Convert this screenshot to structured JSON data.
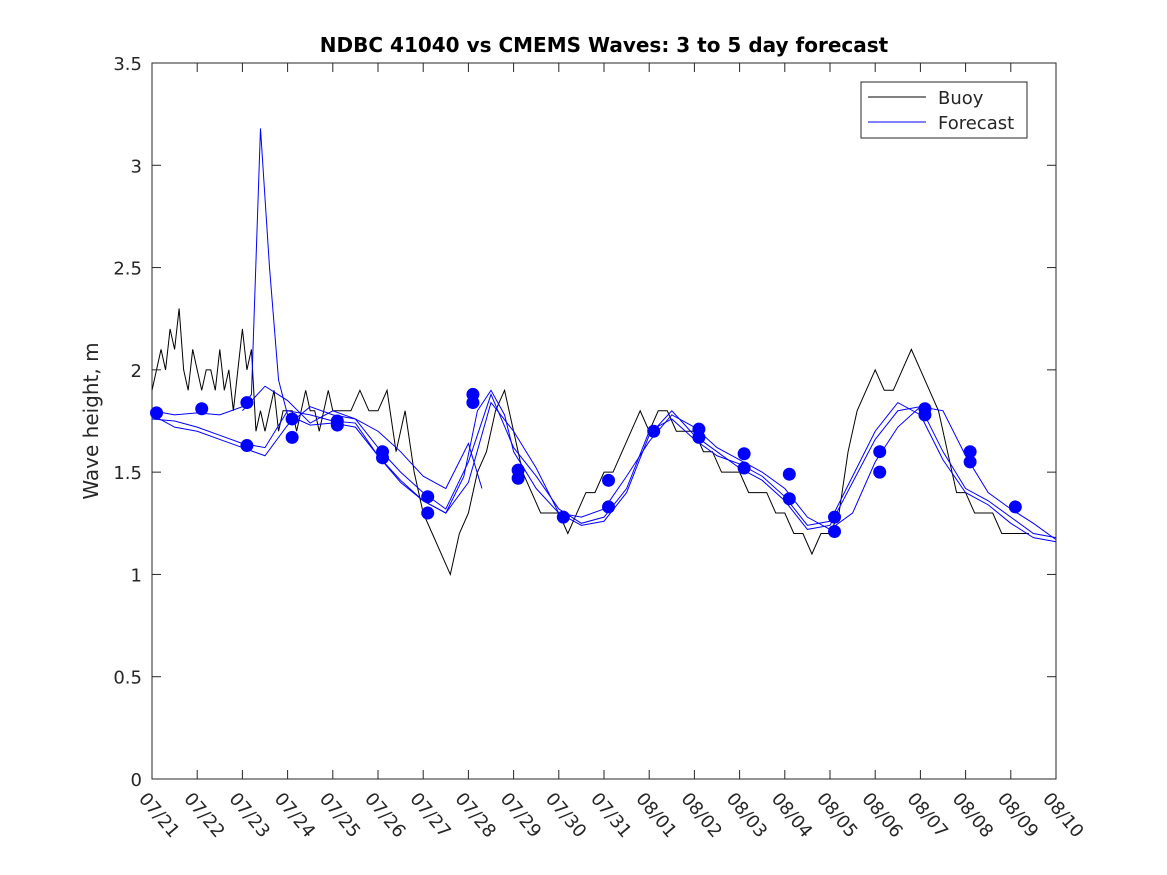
{
  "chart_data": {
    "type": "line",
    "title": "NDBC 41040 vs CMEMS Waves: 3 to 5 day forecast",
    "ylabel": "Wave height, m",
    "xlabel": "",
    "ylim": [
      0,
      3.5
    ],
    "xlim": [
      0,
      20
    ],
    "y_ticks": [
      0,
      0.5,
      1,
      1.5,
      2,
      2.5,
      3,
      3.5
    ],
    "y_tick_labels": [
      "0",
      "0.5",
      "1",
      "1.5",
      "2",
      "2.5",
      "3",
      "3.5"
    ],
    "x_tick_labels": [
      "07/21",
      "07/22",
      "07/23",
      "07/24",
      "07/25",
      "07/26",
      "07/27",
      "07/28",
      "07/29",
      "07/30",
      "07/31",
      "08/01",
      "08/02",
      "08/03",
      "08/04",
      "08/05",
      "08/06",
      "08/07",
      "08/08",
      "08/09",
      "08/10"
    ],
    "grid": false,
    "legend": {
      "placement": "top-right",
      "entries": [
        "Buoy",
        "Forecast"
      ]
    },
    "colors": {
      "buoy": "#000000",
      "forecast": "#0000ff",
      "markers": "#0000ff"
    },
    "series": [
      {
        "name": "Buoy",
        "x": [
          0.0,
          0.1,
          0.2,
          0.3,
          0.4,
          0.5,
          0.6,
          0.7,
          0.8,
          0.9,
          1.0,
          1.1,
          1.2,
          1.3,
          1.4,
          1.5,
          1.6,
          1.7,
          1.8,
          1.9,
          2.0,
          2.1,
          2.2,
          2.3,
          2.4,
          2.5,
          2.6,
          2.7,
          2.8,
          2.9,
          3.0,
          3.1,
          3.2,
          3.3,
          3.4,
          3.5,
          3.6,
          3.7,
          3.8,
          3.9,
          4.0,
          4.2,
          4.4,
          4.6,
          4.8,
          5.0,
          5.2,
          5.4,
          5.6,
          5.8,
          6.0,
          6.2,
          6.4,
          6.6,
          6.8,
          7.0,
          7.2,
          7.4,
          7.6,
          7.8,
          8.0,
          8.2,
          8.4,
          8.6,
          8.8,
          9.0,
          9.2,
          9.4,
          9.6,
          9.8,
          10.0,
          10.2,
          10.4,
          10.6,
          10.8,
          11.0,
          11.2,
          11.4,
          11.6,
          11.8,
          12.0,
          12.2,
          12.4,
          12.6,
          12.8,
          13.0,
          13.2,
          13.4,
          13.6,
          13.8,
          14.0,
          14.2,
          14.4,
          14.6,
          14.8,
          15.0,
          15.2,
          15.4,
          15.6,
          15.8,
          16.0,
          16.2,
          16.4,
          16.6,
          16.8,
          17.0,
          17.2,
          17.4,
          17.6,
          17.8,
          18.0,
          18.2,
          18.4,
          18.6,
          18.8,
          19.0,
          19.2,
          19.4
        ],
        "values": [
          1.9,
          2.0,
          2.1,
          2.0,
          2.2,
          2.1,
          2.3,
          2.0,
          1.9,
          2.1,
          2.0,
          1.9,
          2.0,
          2.0,
          1.9,
          2.1,
          1.9,
          2.0,
          1.8,
          2.0,
          2.2,
          2.0,
          2.1,
          1.7,
          1.8,
          1.7,
          1.8,
          1.9,
          1.7,
          1.8,
          1.8,
          1.8,
          1.7,
          1.8,
          1.9,
          1.8,
          1.8,
          1.7,
          1.8,
          1.9,
          1.8,
          1.8,
          1.8,
          1.9,
          1.8,
          1.8,
          1.9,
          1.6,
          1.8,
          1.5,
          1.3,
          1.2,
          1.1,
          1.0,
          1.2,
          1.3,
          1.5,
          1.6,
          1.8,
          1.9,
          1.7,
          1.5,
          1.4,
          1.3,
          1.3,
          1.3,
          1.2,
          1.3,
          1.4,
          1.4,
          1.5,
          1.5,
          1.6,
          1.7,
          1.8,
          1.7,
          1.8,
          1.8,
          1.7,
          1.7,
          1.7,
          1.6,
          1.6,
          1.5,
          1.5,
          1.5,
          1.4,
          1.4,
          1.4,
          1.3,
          1.3,
          1.2,
          1.2,
          1.1,
          1.2,
          1.2,
          1.3,
          1.6,
          1.8,
          1.9,
          2.0,
          1.9,
          1.9,
          2.0,
          2.1,
          2.0,
          1.9,
          1.8,
          1.6,
          1.4,
          1.4,
          1.3,
          1.3,
          1.3,
          1.2,
          1.2,
          1.2,
          1.2
        ]
      },
      {
        "name": "Forecast",
        "x": [
          0.0,
          0.5,
          1.0,
          1.5,
          2.0,
          2.2,
          2.4,
          2.6,
          2.8,
          3.0,
          3.5,
          4.0,
          4.5,
          5.0,
          5.5,
          6.0,
          6.5,
          6.9,
          7.2,
          7.5,
          7.8,
          8.0,
          8.5,
          9.0,
          9.5,
          10.0,
          10.5,
          11.0,
          11.5,
          12.0,
          12.5,
          13.0,
          13.5,
          14.0,
          14.5,
          15.0,
          15.5,
          16.0,
          16.5,
          17.0,
          17.5,
          18.0,
          18.5,
          19.0,
          19.5,
          20.0
        ],
        "values": [
          1.8,
          1.78,
          1.79,
          1.78,
          1.82,
          1.88,
          3.18,
          2.5,
          1.95,
          1.78,
          1.73,
          1.74,
          1.72,
          1.58,
          1.45,
          1.36,
          1.3,
          1.48,
          1.8,
          1.9,
          1.78,
          1.6,
          1.42,
          1.3,
          1.28,
          1.32,
          1.48,
          1.65,
          1.78,
          1.72,
          1.62,
          1.56,
          1.5,
          1.42,
          1.28,
          1.22,
          1.3,
          1.55,
          1.72,
          1.82,
          1.8,
          1.58,
          1.4,
          1.32,
          1.25,
          1.17
        ]
      },
      {
        "name": "",
        "x": [
          0.0,
          0.5,
          1.0,
          1.5,
          2.0,
          2.5,
          3.0,
          3.5,
          4.0,
          4.5,
          5.0,
          5.5,
          6.0,
          6.5,
          7.0,
          7.5,
          8.0,
          8.5,
          9.0,
          9.5,
          10.0,
          10.5,
          11.0,
          11.5,
          12.0,
          12.5,
          13.0,
          13.5,
          14.0,
          14.5,
          15.0,
          15.5,
          16.0,
          16.5,
          17.0,
          17.5,
          18.0,
          18.5,
          19.0,
          19.5,
          20.0
        ],
        "values": [
          1.78,
          1.72,
          1.7,
          1.66,
          1.62,
          1.58,
          1.73,
          1.82,
          1.78,
          1.76,
          1.62,
          1.5,
          1.4,
          1.32,
          1.55,
          1.88,
          1.62,
          1.48,
          1.32,
          1.25,
          1.28,
          1.42,
          1.7,
          1.76,
          1.66,
          1.58,
          1.54,
          1.48,
          1.38,
          1.24,
          1.26,
          1.48,
          1.7,
          1.84,
          1.78,
          1.56,
          1.4,
          1.34,
          1.25,
          1.18,
          1.16
        ]
      },
      {
        "name": "",
        "x": [
          0.0,
          0.5,
          1.0,
          1.5,
          2.0,
          2.5,
          3.0,
          3.5,
          4.0,
          4.5,
          5.0,
          5.5,
          6.0,
          6.5,
          7.0,
          7.5,
          8.0,
          8.5,
          9.0,
          9.5,
          10.0,
          10.5,
          11.0,
          11.5,
          12.0,
          12.5,
          13.0,
          13.5,
          14.0,
          14.5,
          15.0,
          15.5,
          16.0,
          16.5,
          17.0,
          17.5,
          18.0,
          18.5,
          19.0,
          19.5,
          20.0
        ],
        "values": [
          1.76,
          1.75,
          1.72,
          1.68,
          1.64,
          1.62,
          1.8,
          1.78,
          1.75,
          1.74,
          1.58,
          1.46,
          1.36,
          1.3,
          1.45,
          1.84,
          1.7,
          1.52,
          1.3,
          1.24,
          1.26,
          1.4,
          1.68,
          1.8,
          1.68,
          1.6,
          1.52,
          1.46,
          1.36,
          1.22,
          1.24,
          1.45,
          1.66,
          1.8,
          1.82,
          1.6,
          1.42,
          1.36,
          1.28,
          1.2,
          1.18
        ]
      },
      {
        "name": "",
        "x": [
          2.0,
          2.5,
          3.0,
          3.5,
          4.0,
          4.5,
          5.0,
          5.5,
          6.0,
          6.5,
          7.0,
          7.3
        ],
        "values": [
          1.8,
          1.92,
          1.85,
          1.74,
          1.8,
          1.76,
          1.7,
          1.6,
          1.48,
          1.42,
          1.64,
          1.42
        ]
      }
    ],
    "markers": {
      "x": [
        0.1,
        1.1,
        2.1,
        2.1,
        3.1,
        3.1,
        4.1,
        4.1,
        5.1,
        5.1,
        6.1,
        6.1,
        7.1,
        7.1,
        8.1,
        8.1,
        9.1,
        10.1,
        10.1,
        11.1,
        12.1,
        12.1,
        13.1,
        13.1,
        14.1,
        14.1,
        15.1,
        15.1,
        16.1,
        16.1,
        17.1,
        17.1,
        18.1,
        18.1,
        19.1
      ],
      "values": [
        1.79,
        1.81,
        1.84,
        1.63,
        1.76,
        1.67,
        1.75,
        1.73,
        1.6,
        1.57,
        1.38,
        1.3,
        1.88,
        1.84,
        1.51,
        1.47,
        1.28,
        1.46,
        1.33,
        1.7,
        1.71,
        1.67,
        1.59,
        1.52,
        1.49,
        1.37,
        1.28,
        1.21,
        1.6,
        1.5,
        1.81,
        1.78,
        1.6,
        1.55,
        1.33
      ]
    }
  }
}
